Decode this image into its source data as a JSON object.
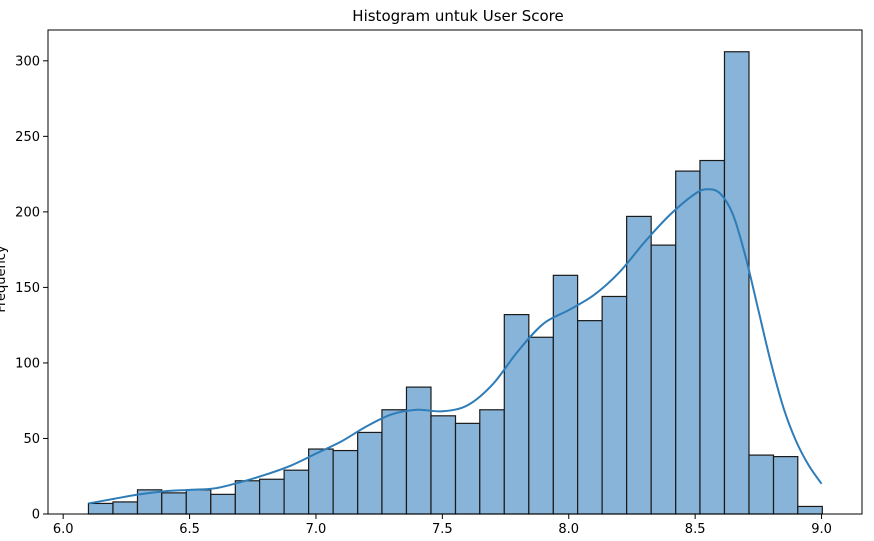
{
  "chart_data": {
    "type": "histogram",
    "title": "Histogram untuk User Score",
    "xlabel": "",
    "ylabel": "Frequency",
    "xlim": [
      6.0,
      9.0
    ],
    "ylim": [
      0,
      320
    ],
    "grid": false,
    "bin_width": 0.0967,
    "bins": [
      {
        "start": 6.1,
        "end": 6.197,
        "count": 7
      },
      {
        "start": 6.197,
        "end": 6.294,
        "count": 8
      },
      {
        "start": 6.294,
        "end": 6.39,
        "count": 16
      },
      {
        "start": 6.39,
        "end": 6.487,
        "count": 14
      },
      {
        "start": 6.487,
        "end": 6.584,
        "count": 16
      },
      {
        "start": 6.584,
        "end": 6.681,
        "count": 13
      },
      {
        "start": 6.681,
        "end": 6.777,
        "count": 22
      },
      {
        "start": 6.777,
        "end": 6.874,
        "count": 23
      },
      {
        "start": 6.874,
        "end": 6.971,
        "count": 29
      },
      {
        "start": 6.971,
        "end": 7.068,
        "count": 43
      },
      {
        "start": 7.068,
        "end": 7.165,
        "count": 42
      },
      {
        "start": 7.165,
        "end": 7.261,
        "count": 54
      },
      {
        "start": 7.261,
        "end": 7.358,
        "count": 69
      },
      {
        "start": 7.358,
        "end": 7.455,
        "count": 84
      },
      {
        "start": 7.455,
        "end": 7.552,
        "count": 65
      },
      {
        "start": 7.552,
        "end": 7.648,
        "count": 60
      },
      {
        "start": 7.648,
        "end": 7.745,
        "count": 69
      },
      {
        "start": 7.745,
        "end": 7.842,
        "count": 132
      },
      {
        "start": 7.842,
        "end": 7.939,
        "count": 117
      },
      {
        "start": 7.939,
        "end": 8.035,
        "count": 158
      },
      {
        "start": 8.035,
        "end": 8.132,
        "count": 128
      },
      {
        "start": 8.132,
        "end": 8.229,
        "count": 144
      },
      {
        "start": 8.229,
        "end": 8.326,
        "count": 197
      },
      {
        "start": 8.326,
        "end": 8.423,
        "count": 178
      },
      {
        "start": 8.423,
        "end": 8.519,
        "count": 227
      },
      {
        "start": 8.519,
        "end": 8.616,
        "count": 234
      },
      {
        "start": 8.616,
        "end": 8.713,
        "count": 306
      },
      {
        "start": 8.713,
        "end": 8.81,
        "count": 39
      },
      {
        "start": 8.81,
        "end": 8.906,
        "count": 38
      },
      {
        "start": 8.906,
        "end": 9.003,
        "count": 5
      }
    ],
    "kde": {
      "x": [
        6.1,
        6.2,
        6.3,
        6.4,
        6.5,
        6.6,
        6.7,
        6.8,
        6.9,
        7.0,
        7.1,
        7.2,
        7.3,
        7.4,
        7.5,
        7.6,
        7.7,
        7.8,
        7.9,
        8.0,
        8.1,
        8.2,
        8.3,
        8.4,
        8.5,
        8.55,
        8.6,
        8.65,
        8.7,
        8.75,
        8.8,
        8.85,
        8.9,
        8.95,
        9.0
      ],
      "y": [
        7,
        10,
        13,
        15,
        16,
        17,
        21,
        26,
        32,
        40,
        48,
        58,
        66,
        69,
        68,
        72,
        86,
        108,
        126,
        135,
        145,
        160,
        180,
        198,
        212,
        215,
        212,
        198,
        170,
        135,
        100,
        70,
        48,
        32,
        20
      ]
    },
    "xticks": [
      "6.0",
      "6.5",
      "7.0",
      "7.5",
      "8.0",
      "8.5",
      "9.0"
    ],
    "xtick_values": [
      6.0,
      6.5,
      7.0,
      7.5,
      8.0,
      8.5,
      9.0
    ],
    "yticks": [
      "0",
      "50",
      "100",
      "150",
      "200",
      "250",
      "300"
    ],
    "ytick_values": [
      0,
      50,
      100,
      150,
      200,
      250,
      300
    ],
    "colors": {
      "bar_fill": "#87b4d8",
      "bar_edge": "#1a1a1a",
      "kde_line": "#2e7cb8"
    }
  }
}
